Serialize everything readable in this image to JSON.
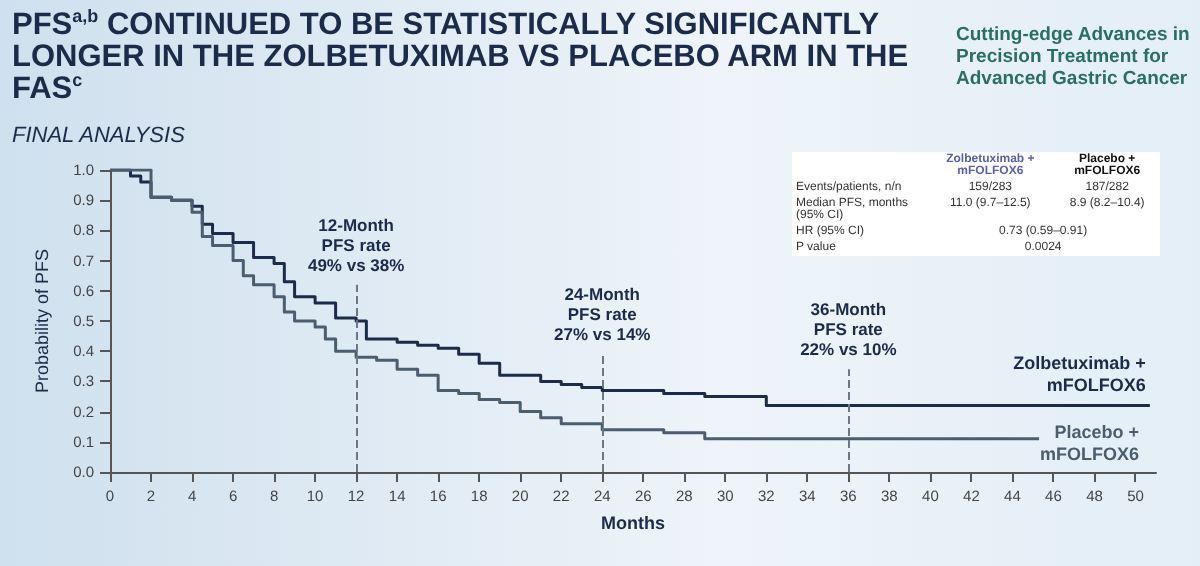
{
  "chart_data": {
    "type": "step",
    "title": "PFS$^{a,b}$ CONTINUED TO BE STATISTICALLY SIGNIFICANTLY LONGER IN THE ZOLBETUXIMAB VS PLACEBO ARM IN THE FAS$^{c}$",
    "subtitle": "FINAL ANALYSIS",
    "xlabel": "Months",
    "ylabel": "Probability of PFS",
    "xlim": [
      0,
      51
    ],
    "xticks": [
      0,
      2,
      4,
      6,
      8,
      10,
      12,
      14,
      16,
      18,
      20,
      22,
      24,
      26,
      28,
      30,
      32,
      34,
      36,
      38,
      40,
      42,
      44,
      46,
      48,
      50
    ],
    "ylim": [
      0,
      1
    ],
    "yticks": [
      {
        "value": 0,
        "label": "0.0"
      },
      0.1,
      0.2,
      0.3,
      0.4,
      0.5,
      0.6,
      0.7,
      0.8,
      0.9,
      {
        "value": 1,
        "label": "1.0"
      }
    ],
    "grid": false,
    "legend": false,
    "line_style": "solid",
    "series": [
      {
        "name": "Zolbetuximab + mFOLFOX6",
        "color": "#1c2b4a",
        "x": [
          0,
          1,
          1.5,
          2,
          3,
          4,
          4.5,
          5,
          6,
          7,
          8,
          8.5,
          9,
          10,
          11,
          12,
          12.5,
          14,
          15,
          16,
          17,
          18,
          19,
          21,
          22,
          23,
          24,
          26,
          27,
          29,
          31,
          32,
          50.7
        ],
        "values": [
          1.0,
          0.98,
          0.96,
          0.91,
          0.9,
          0.88,
          0.82,
          0.79,
          0.76,
          0.71,
          0.69,
          0.63,
          0.58,
          0.56,
          0.51,
          0.5,
          0.44,
          0.43,
          0.42,
          0.41,
          0.39,
          0.36,
          0.32,
          0.3,
          0.29,
          0.28,
          0.27,
          0.27,
          0.26,
          0.25,
          0.25,
          0.22,
          0.22
        ]
      },
      {
        "name": "Placebo + mFOLFOX6",
        "color": "#4b5d6e",
        "x": [
          0,
          2,
          3,
          4,
          4.5,
          5,
          6,
          6.5,
          7,
          8,
          8.5,
          9,
          10,
          10.5,
          11,
          12,
          13,
          14,
          15,
          16,
          17,
          18,
          19,
          20,
          21,
          22,
          23,
          24,
          26,
          27,
          29,
          30,
          45.3
        ],
        "values": [
          1.0,
          0.91,
          0.9,
          0.86,
          0.78,
          0.75,
          0.7,
          0.65,
          0.62,
          0.58,
          0.53,
          0.5,
          0.48,
          0.44,
          0.4,
          0.38,
          0.37,
          0.34,
          0.32,
          0.27,
          0.26,
          0.24,
          0.23,
          0.2,
          0.18,
          0.16,
          0.16,
          0.14,
          0.14,
          0.13,
          0.11,
          0.11,
          0.11
        ]
      }
    ],
    "ref_lines": [
      {
        "axis": "x",
        "value": 12,
        "label": "12-Month\nPFS rate\n49% vs 38%",
        "color": "#6b7785",
        "line_style": "dashed"
      },
      {
        "axis": "x",
        "value": 24,
        "label": "24-Month\nPFS rate\n27% vs 14%",
        "color": "#6b7785",
        "line_style": "dashed"
      },
      {
        "axis": "x",
        "value": 36,
        "label": "36-Month\nPFS rate\n22% vs 10%",
        "color": "#6b7785",
        "line_style": "dashed"
      }
    ],
    "annotations": [
      "Cutting-edge Advances in Precision Treatment for Advanced Gastric Cancer",
      "Zolbetuximab + mFOLFOX6",
      "Placebo + mFOLFOX6",
      "Events/patients, n/n",
      "159/283",
      "187/282",
      "Median PFS, months (95% CI)",
      "11.0 (9.7–12.5)",
      "8.9 (8.2–10.4)",
      "HR (95% CI)",
      "0.73 (0.59–0.91)",
      "P value",
      "0.0024"
    ]
  }
}
